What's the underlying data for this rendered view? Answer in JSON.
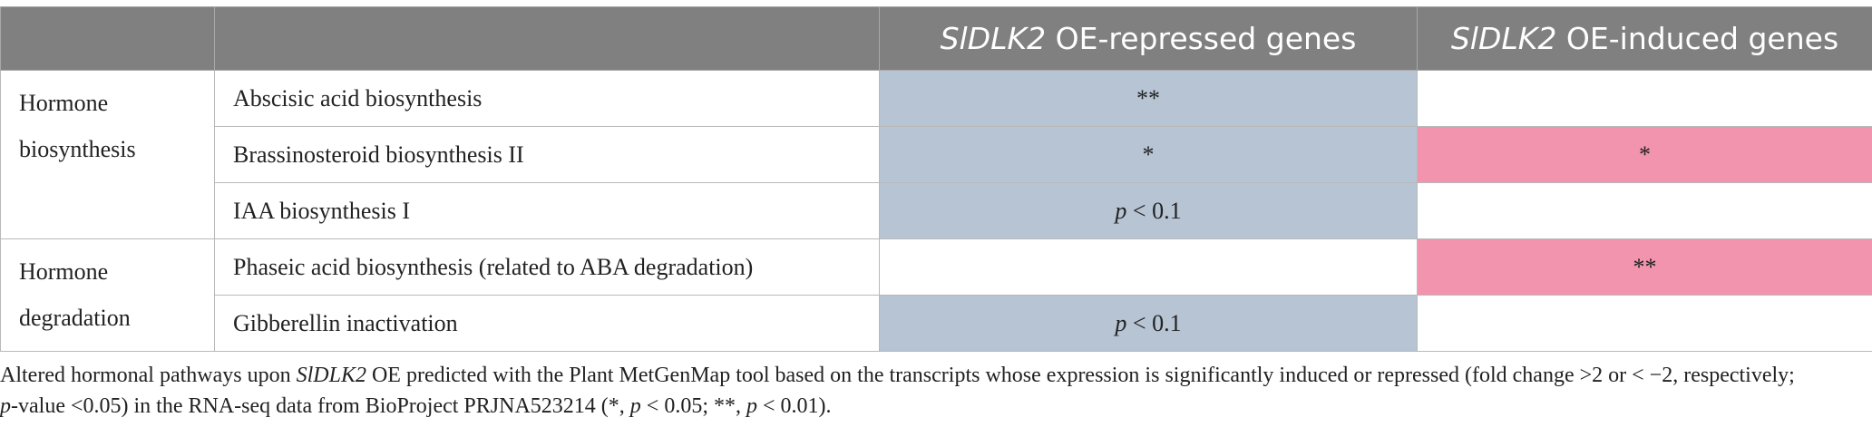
{
  "header": {
    "col3": {
      "gene": "SlDLK2",
      "suffix": " OE-repressed genes"
    },
    "col4": {
      "gene": "SlDLK2",
      "suffix": " OE-induced genes"
    }
  },
  "groups": [
    {
      "label_line1": "Hormone",
      "label_line2": "biosynthesis"
    },
    {
      "label_line1": "Hormone",
      "label_line2": "degradation"
    }
  ],
  "rows": [
    {
      "pathway": "Abscisic acid biosynthesis",
      "repressed": "**",
      "induced": ""
    },
    {
      "pathway": "Brassinosteroid biosynthesis II",
      "repressed": "*",
      "induced": "*"
    },
    {
      "pathway": "IAA biosynthesis I",
      "repressed_p": "p",
      "repressed_rest": " < 0.1",
      "induced": ""
    },
    {
      "pathway": "Phaseic acid biosynthesis (related to ABA degradation)",
      "repressed": "",
      "induced": "**"
    },
    {
      "pathway": "Gibberellin inactivation",
      "repressed_p": "p",
      "repressed_rest": " < 0.1",
      "induced": ""
    }
  ],
  "colors": {
    "repressed": "#b6c4d4",
    "induced": "#f294ae",
    "header": "#808080"
  },
  "caption": {
    "part1": "Altered hormonal pathways upon ",
    "gene": "SlDLK2",
    "part2": " OE predicted with the Plant MetGenMap tool based on the transcripts whose expression is significantly induced or repressed (fold change >2 or < −2, respectively; ",
    "pvalue_p": "p",
    "part3": "-value <0.05) in the RNA-seq data from BioProject PRJNA523214 (*, ",
    "p1": "p",
    "part4": " < 0.05; **, ",
    "p2": "p",
    "part5": " < 0.01)."
  }
}
